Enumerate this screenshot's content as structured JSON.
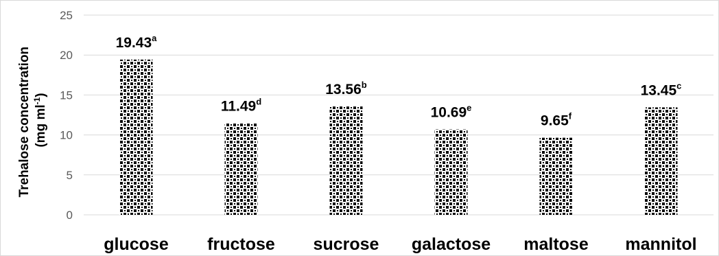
{
  "chart_data": {
    "type": "bar",
    "categories": [
      "glucose",
      "fructose",
      "sucrose",
      "galactose",
      "maltose",
      "mannitol"
    ],
    "values": [
      19.43,
      11.49,
      13.56,
      10.69,
      9.65,
      13.45
    ],
    "data_labels": [
      {
        "value": "19.43",
        "letter": "a"
      },
      {
        "value": "11.49",
        "letter": "d"
      },
      {
        "value": "13.56",
        "letter": "b"
      },
      {
        "value": "10.69",
        "letter": "e"
      },
      {
        "value": "9.65",
        "letter": "f"
      },
      {
        "value": "13.45",
        "letter": "c"
      }
    ],
    "title": "",
    "xlabel": "",
    "ylabel": {
      "line1": "Trehalose concentration",
      "line2_prefix": "(mg ml",
      "line2_sup": "-1",
      "line2_suffix": ")"
    },
    "ylim": [
      0,
      25
    ],
    "yticks": [
      0,
      5,
      10,
      15,
      20,
      25
    ],
    "grid": true,
    "legend": "none",
    "bar_pattern": "black-and-white checkered",
    "colors": {
      "pattern_dark": "#000000",
      "pattern_light": "#ffffff",
      "gridline": "#d9d9d9",
      "tick_text": "#595959",
      "label_text": "#000000"
    }
  }
}
